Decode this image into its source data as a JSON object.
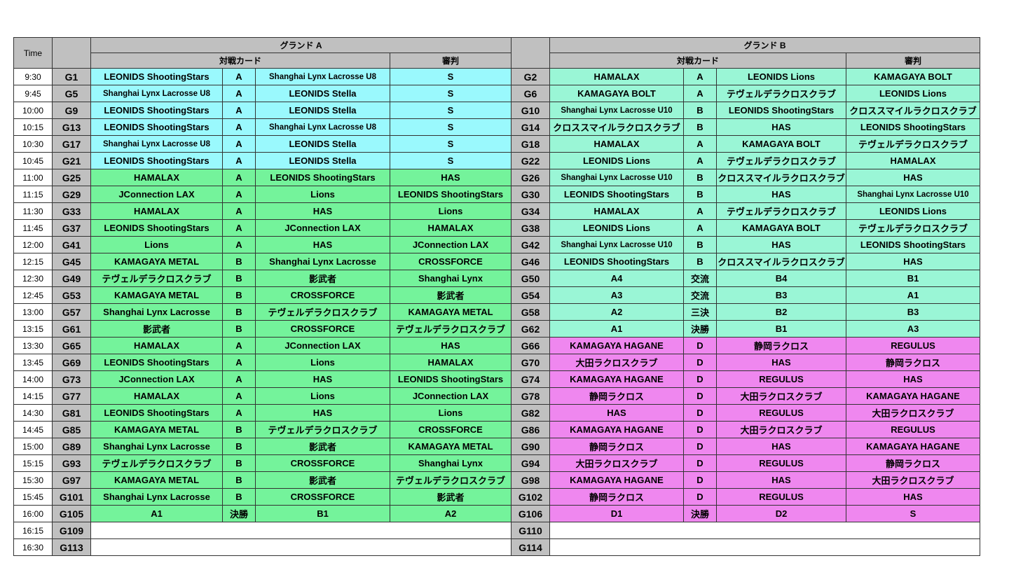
{
  "header": {
    "time_label": "Time",
    "ground_a": "グランド A",
    "ground_b": "グランド B",
    "match_card": "対戦カード",
    "referee": "審判"
  },
  "colors": {
    "cyan": "#9af9fd",
    "green": "#74f39b",
    "mint": "#9af6d6",
    "magenta": "#ef87ef",
    "header_gray": "#c0c0c0"
  },
  "rows": [
    {
      "time": "9:30",
      "a": {
        "game": "G1",
        "team1": "LEONIDS ShootingStars",
        "div": "A",
        "team2": "Shanghai Lynx Lacrosse U8",
        "ref": "S",
        "color": "cyan"
      },
      "b": {
        "game": "G2",
        "team1": "HAMALAX",
        "div": "A",
        "team2": "LEONIDS Lions",
        "ref": "KAMAGAYA BOLT",
        "color": "mint"
      }
    },
    {
      "time": "9:45",
      "a": {
        "game": "G5",
        "team1": "Shanghai Lynx Lacrosse U8",
        "div": "A",
        "team2": "LEONIDS Stella",
        "ref": "S",
        "color": "cyan"
      },
      "b": {
        "game": "G6",
        "team1": "KAMAGAYA BOLT",
        "div": "A",
        "team2": "テヴェルデラクロスクラブ",
        "ref": "LEONIDS Lions",
        "color": "mint"
      }
    },
    {
      "time": "10:00",
      "a": {
        "game": "G9",
        "team1": "LEONIDS ShootingStars",
        "div": "A",
        "team2": "LEONIDS Stella",
        "ref": "S",
        "color": "cyan"
      },
      "b": {
        "game": "G10",
        "team1": "Shanghai Lynx Lacrosse U10",
        "div": "B",
        "team2": "LEONIDS ShootingStars",
        "ref": "クロススマイルラクロスクラブ",
        "color": "mint"
      }
    },
    {
      "time": "10:15",
      "a": {
        "game": "G13",
        "team1": "LEONIDS ShootingStars",
        "div": "A",
        "team2": "Shanghai Lynx Lacrosse U8",
        "ref": "S",
        "color": "cyan"
      },
      "b": {
        "game": "G14",
        "team1": "クロススマイルラクロスクラブ",
        "div": "B",
        "team2": "HAS",
        "ref": "LEONIDS ShootingStars",
        "color": "mint"
      }
    },
    {
      "time": "10:30",
      "a": {
        "game": "G17",
        "team1": "Shanghai Lynx Lacrosse U8",
        "div": "A",
        "team2": "LEONIDS Stella",
        "ref": "S",
        "color": "cyan"
      },
      "b": {
        "game": "G18",
        "team1": "HAMALAX",
        "div": "A",
        "team2": "KAMAGAYA BOLT",
        "ref": "テヴェルデラクロスクラブ",
        "color": "mint"
      }
    },
    {
      "time": "10:45",
      "a": {
        "game": "G21",
        "team1": "LEONIDS ShootingStars",
        "div": "A",
        "team2": "LEONIDS Stella",
        "ref": "S",
        "color": "cyan"
      },
      "b": {
        "game": "G22",
        "team1": "LEONIDS Lions",
        "div": "A",
        "team2": "テヴェルデラクロスクラブ",
        "ref": "HAMALAX",
        "color": "mint"
      }
    },
    {
      "time": "11:00",
      "a": {
        "game": "G25",
        "team1": "HAMALAX",
        "div": "A",
        "team2": "LEONIDS ShootingStars",
        "ref": "HAS",
        "color": "green"
      },
      "b": {
        "game": "G26",
        "team1": "Shanghai Lynx Lacrosse U10",
        "div": "B",
        "team2": "クロススマイルラクロスクラブ",
        "ref": "HAS",
        "color": "mint"
      }
    },
    {
      "time": "11:15",
      "a": {
        "game": "G29",
        "team1": "JConnection LAX",
        "div": "A",
        "team2": "Lions",
        "ref": "LEONIDS ShootingStars",
        "color": "green"
      },
      "b": {
        "game": "G30",
        "team1": "LEONIDS ShootingStars",
        "div": "B",
        "team2": "HAS",
        "ref": "Shanghai Lynx Lacrosse U10",
        "color": "mint"
      }
    },
    {
      "time": "11:30",
      "a": {
        "game": "G33",
        "team1": "HAMALAX",
        "div": "A",
        "team2": "HAS",
        "ref": "Lions",
        "color": "green"
      },
      "b": {
        "game": "G34",
        "team1": "HAMALAX",
        "div": "A",
        "team2": "テヴェルデラクロスクラブ",
        "ref": "LEONIDS Lions",
        "color": "mint"
      }
    },
    {
      "time": "11:45",
      "a": {
        "game": "G37",
        "team1": "LEONIDS ShootingStars",
        "div": "A",
        "team2": "JConnection LAX",
        "ref": "HAMALAX",
        "color": "green"
      },
      "b": {
        "game": "G38",
        "team1": "LEONIDS Lions",
        "div": "A",
        "team2": "KAMAGAYA BOLT",
        "ref": "テヴェルデラクロスクラブ",
        "color": "mint"
      }
    },
    {
      "time": "12:00",
      "a": {
        "game": "G41",
        "team1": "Lions",
        "div": "A",
        "team2": "HAS",
        "ref": "JConnection LAX",
        "color": "green"
      },
      "b": {
        "game": "G42",
        "team1": "Shanghai Lynx Lacrosse U10",
        "div": "B",
        "team2": "HAS",
        "ref": "LEONIDS ShootingStars",
        "color": "mint"
      }
    },
    {
      "time": "12:15",
      "a": {
        "game": "G45",
        "team1": "KAMAGAYA METAL",
        "div": "B",
        "team2": "Shanghai Lynx Lacrosse",
        "ref": "CROSSFORCE",
        "color": "green"
      },
      "b": {
        "game": "G46",
        "team1": "LEONIDS ShootingStars",
        "div": "B",
        "team2": "クロススマイルラクロスクラブ",
        "ref": "HAS",
        "color": "mint"
      }
    },
    {
      "time": "12:30",
      "a": {
        "game": "G49",
        "team1": "テヴェルデラクロスクラブ",
        "div": "B",
        "team2": "影武者",
        "ref": "Shanghai Lynx",
        "color": "green"
      },
      "b": {
        "game": "G50",
        "team1": "A4",
        "div": "交流",
        "team2": "B4",
        "ref": "B1",
        "color": "mint"
      }
    },
    {
      "time": "12:45",
      "a": {
        "game": "G53",
        "team1": "KAMAGAYA METAL",
        "div": "B",
        "team2": "CROSSFORCE",
        "ref": "影武者",
        "color": "green"
      },
      "b": {
        "game": "G54",
        "team1": "A3",
        "div": "交流",
        "team2": "B3",
        "ref": "A1",
        "color": "mint"
      }
    },
    {
      "time": "13:00",
      "a": {
        "game": "G57",
        "team1": "Shanghai Lynx Lacrosse",
        "div": "B",
        "team2": "テヴェルデラクロスクラブ",
        "ref": "KAMAGAYA METAL",
        "color": "green"
      },
      "b": {
        "game": "G58",
        "team1": "A2",
        "div": "三決",
        "team2": "B2",
        "ref": "B3",
        "color": "mint"
      }
    },
    {
      "time": "13:15",
      "a": {
        "game": "G61",
        "team1": "影武者",
        "div": "B",
        "team2": "CROSSFORCE",
        "ref": "テヴェルデラクロスクラブ",
        "color": "green"
      },
      "b": {
        "game": "G62",
        "team1": "A1",
        "div": "決勝",
        "team2": "B1",
        "ref": "A3",
        "color": "mint"
      }
    },
    {
      "time": "13:30",
      "a": {
        "game": "G65",
        "team1": "HAMALAX",
        "div": "A",
        "team2": "JConnection LAX",
        "ref": "HAS",
        "color": "green"
      },
      "b": {
        "game": "G66",
        "team1": "KAMAGAYA HAGANE",
        "div": "D",
        "team2": "静岡ラクロス",
        "ref": "REGULUS",
        "color": "magenta"
      }
    },
    {
      "time": "13:45",
      "a": {
        "game": "G69",
        "team1": "LEONIDS ShootingStars",
        "div": "A",
        "team2": "Lions",
        "ref": "HAMALAX",
        "color": "green"
      },
      "b": {
        "game": "G70",
        "team1": "大田ラクロスクラブ",
        "div": "D",
        "team2": "HAS",
        "ref": "静岡ラクロス",
        "color": "magenta"
      }
    },
    {
      "time": "14:00",
      "a": {
        "game": "G73",
        "team1": "JConnection LAX",
        "div": "A",
        "team2": "HAS",
        "ref": "LEONIDS ShootingStars",
        "color": "green"
      },
      "b": {
        "game": "G74",
        "team1": "KAMAGAYA HAGANE",
        "div": "D",
        "team2": "REGULUS",
        "ref": "HAS",
        "color": "magenta"
      }
    },
    {
      "time": "14:15",
      "a": {
        "game": "G77",
        "team1": "HAMALAX",
        "div": "A",
        "team2": "Lions",
        "ref": "JConnection LAX",
        "color": "green"
      },
      "b": {
        "game": "G78",
        "team1": "静岡ラクロス",
        "div": "D",
        "team2": "大田ラクロスクラブ",
        "ref": "KAMAGAYA HAGANE",
        "color": "magenta"
      }
    },
    {
      "time": "14:30",
      "a": {
        "game": "G81",
        "team1": "LEONIDS ShootingStars",
        "div": "A",
        "team2": "HAS",
        "ref": "Lions",
        "color": "green"
      },
      "b": {
        "game": "G82",
        "team1": "HAS",
        "div": "D",
        "team2": "REGULUS",
        "ref": "大田ラクロスクラブ",
        "color": "magenta"
      }
    },
    {
      "time": "14:45",
      "a": {
        "game": "G85",
        "team1": "KAMAGAYA METAL",
        "div": "B",
        "team2": "テヴェルデラクロスクラブ",
        "ref": "CROSSFORCE",
        "color": "green"
      },
      "b": {
        "game": "G86",
        "team1": "KAMAGAYA HAGANE",
        "div": "D",
        "team2": "大田ラクロスクラブ",
        "ref": "REGULUS",
        "color": "magenta"
      }
    },
    {
      "time": "15:00",
      "a": {
        "game": "G89",
        "team1": "Shanghai Lynx Lacrosse",
        "div": "B",
        "team2": "影武者",
        "ref": "KAMAGAYA METAL",
        "color": "green"
      },
      "b": {
        "game": "G90",
        "team1": "静岡ラクロス",
        "div": "D",
        "team2": "HAS",
        "ref": "KAMAGAYA HAGANE",
        "color": "magenta"
      }
    },
    {
      "time": "15:15",
      "a": {
        "game": "G93",
        "team1": "テヴェルデラクロスクラブ",
        "div": "B",
        "team2": "CROSSFORCE",
        "ref": "Shanghai Lynx",
        "color": "green"
      },
      "b": {
        "game": "G94",
        "team1": "大田ラクロスクラブ",
        "div": "D",
        "team2": "REGULUS",
        "ref": "静岡ラクロス",
        "color": "magenta"
      }
    },
    {
      "time": "15:30",
      "a": {
        "game": "G97",
        "team1": "KAMAGAYA METAL",
        "div": "B",
        "team2": "影武者",
        "ref": "テヴェルデラクロスクラブ",
        "color": "green"
      },
      "b": {
        "game": "G98",
        "team1": "KAMAGAYA HAGANE",
        "div": "D",
        "team2": "HAS",
        "ref": "大田ラクロスクラブ",
        "color": "magenta"
      }
    },
    {
      "time": "15:45",
      "a": {
        "game": "G101",
        "team1": "Shanghai Lynx Lacrosse",
        "div": "B",
        "team2": "CROSSFORCE",
        "ref": "影武者",
        "color": "green"
      },
      "b": {
        "game": "G102",
        "team1": "静岡ラクロス",
        "div": "D",
        "team2": "REGULUS",
        "ref": "HAS",
        "color": "magenta"
      }
    },
    {
      "time": "16:00",
      "a": {
        "game": "G105",
        "team1": "A1",
        "div": "決勝",
        "team2": "B1",
        "ref": "A2",
        "color": "green"
      },
      "b": {
        "game": "G106",
        "team1": "D1",
        "div": "決勝",
        "team2": "D2",
        "ref": "S",
        "color": "magenta"
      }
    },
    {
      "time": "16:15",
      "a": {
        "game": "G109"
      },
      "b": {
        "game": "G110"
      }
    },
    {
      "time": "16:30",
      "a": {
        "game": "G113"
      },
      "b": {
        "game": "G114"
      }
    }
  ]
}
